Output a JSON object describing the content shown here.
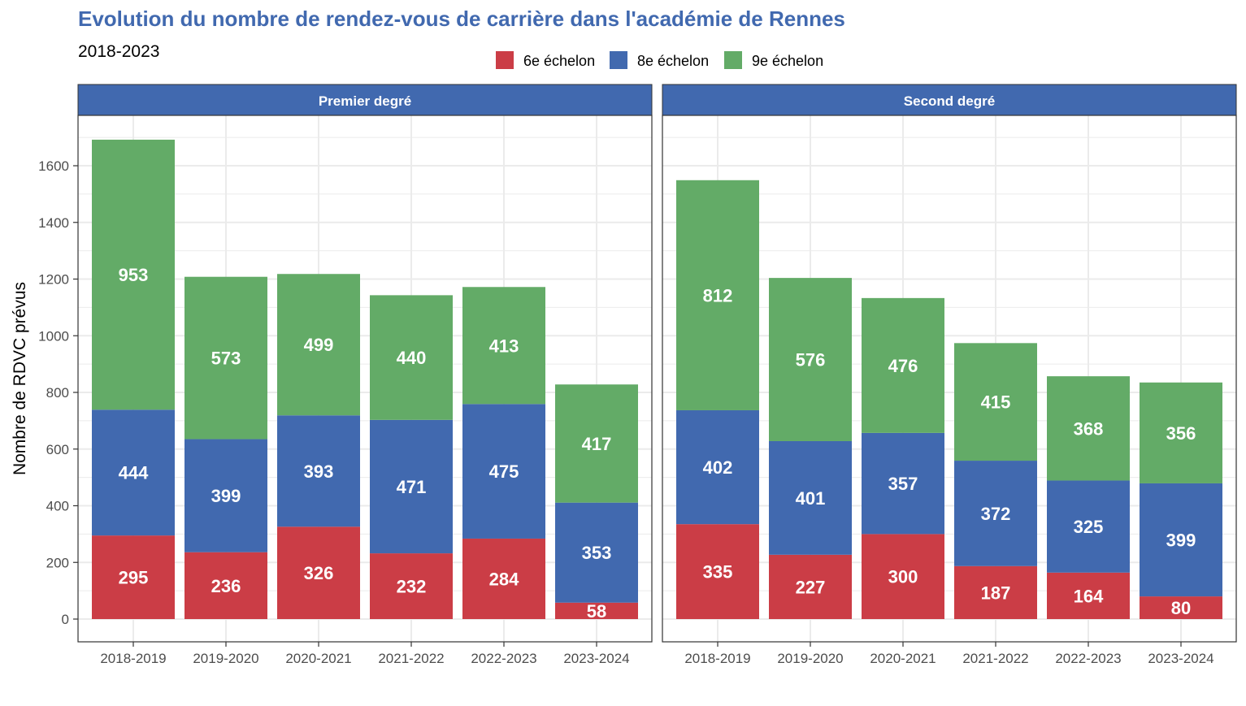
{
  "chart_data": {
    "type": "bar",
    "stacked": true,
    "title": "Evolution du nombre de rendez-vous de carrière dans l'académie de Rennes",
    "subtitle": "2018-2023",
    "ylabel": "Nombre de RDVC prévus",
    "xlabel": "",
    "ylim": [
      0,
      1700
    ],
    "yticks": [
      0,
      200,
      400,
      600,
      800,
      1000,
      1200,
      1400,
      1600
    ],
    "grid": true,
    "legend_position": "top",
    "categories": [
      "2018-2019",
      "2019-2020",
      "2020-2021",
      "2021-2022",
      "2022-2023",
      "2023-2024"
    ],
    "series": [
      {
        "name": "6e échelon",
        "color": "#CB3D46"
      },
      {
        "name": "8e échelon",
        "color": "#4169AF"
      },
      {
        "name": "9e échelon",
        "color": "#63AB67"
      }
    ],
    "panels": [
      {
        "label": "Premier degré",
        "values": [
          [
            295,
            236,
            326,
            232,
            284,
            58
          ],
          [
            444,
            399,
            393,
            471,
            475,
            353
          ],
          [
            953,
            573,
            499,
            440,
            413,
            417
          ]
        ]
      },
      {
        "label": "Second degré",
        "values": [
          [
            335,
            227,
            300,
            187,
            164,
            80
          ],
          [
            402,
            401,
            357,
            372,
            325,
            399
          ],
          [
            812,
            576,
            476,
            415,
            368,
            356
          ]
        ]
      }
    ],
    "colors": {
      "title": "#4169AF",
      "strip_bg": "#4169AF",
      "strip_text": "#ffffff",
      "grid": "#EBEBEB",
      "axis_text": "#4D4D4D",
      "bar_label": "#ffffff"
    }
  }
}
